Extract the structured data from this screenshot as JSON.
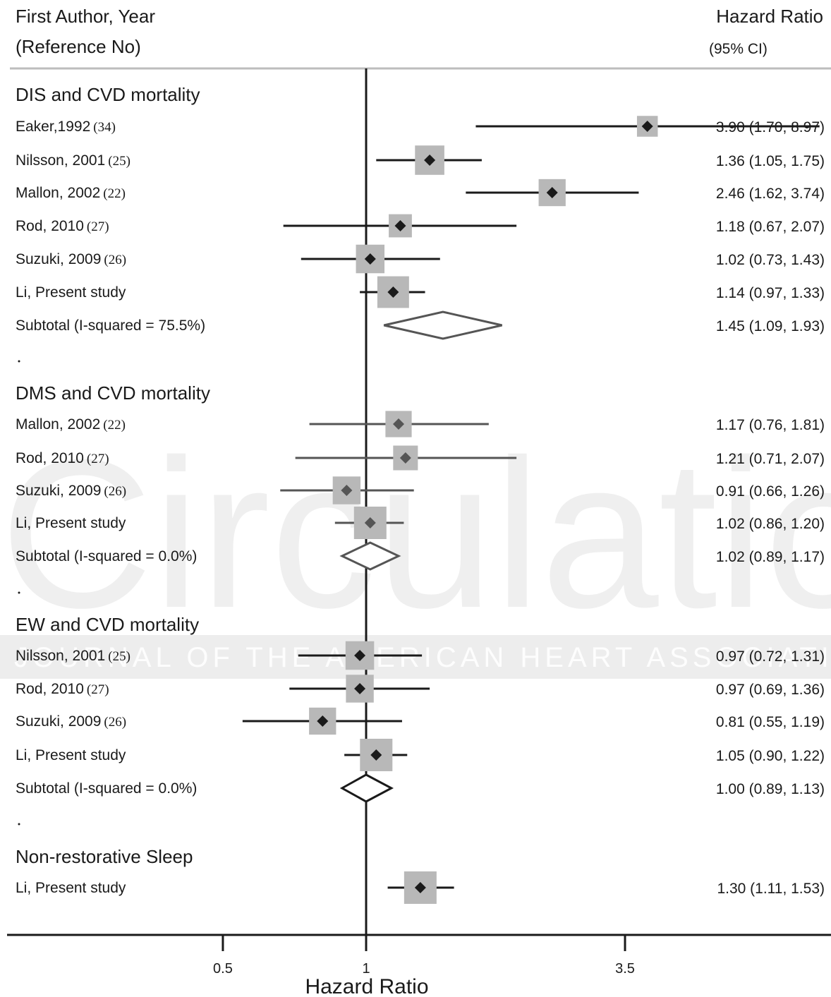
{
  "header": {
    "left_line1": "First Author, Year",
    "left_line2": "(Reference No)",
    "right_line1": "Hazard Ratio",
    "right_line2": "(95% CI)"
  },
  "watermark": {
    "word": "Circulation",
    "subtitle": "JOURNAL OF THE AMERICAN HEART ASSOCIATION"
  },
  "chart_data": {
    "type": "forest",
    "xlabel": "Hazard Ratio",
    "ylabel": "",
    "reference_line": 1,
    "x_ticks": [
      {
        "value": 0.5,
        "label": "0.5"
      },
      {
        "value": 1,
        "label": "1"
      },
      {
        "value": 3.5,
        "label": "3.5"
      }
    ],
    "groups": [
      {
        "title": "DIS and CVD mortality",
        "rows": [
          {
            "study": "Eaker,1992",
            "ref": "(34)",
            "hr": 3.9,
            "lo": 1.7,
            "hi": 8.97,
            "text": "3.90 (1.70, 8.97)",
            "weight": 0.25
          },
          {
            "study": "Nilsson, 2001",
            "ref": "(25)",
            "hr": 1.36,
            "lo": 1.05,
            "hi": 1.75,
            "text": "1.36 (1.05, 1.75)",
            "weight": 0.8
          },
          {
            "study": "Mallon, 2002",
            "ref": "(22)",
            "hr": 2.46,
            "lo": 1.62,
            "hi": 3.74,
            "text": "2.46 (1.62, 3.74)",
            "weight": 0.65
          },
          {
            "study": "Rod, 2010",
            "ref": "(27)",
            "hr": 1.18,
            "lo": 0.67,
            "hi": 2.07,
            "text": "1.18 (0.67, 2.07)",
            "weight": 0.4
          },
          {
            "study": "Suzuki, 2009",
            "ref": "(26)",
            "hr": 1.02,
            "lo": 0.73,
            "hi": 1.43,
            "text": "1.02 (0.73, 1.43)",
            "weight": 0.75
          },
          {
            "study": "Li, Present study",
            "ref": "",
            "hr": 1.14,
            "lo": 0.97,
            "hi": 1.33,
            "text": "1.14 (0.97, 1.33)",
            "weight": 0.95
          }
        ],
        "subtotal": {
          "label": "Subtotal  (I-squared = 75.5%)",
          "hr": 1.45,
          "lo": 1.09,
          "hi": 1.93,
          "text": "1.45 (1.09, 1.93)"
        }
      },
      {
        "title": "DMS and CVD mortality",
        "rows": [
          {
            "study": "Mallon, 2002",
            "ref": "(22)",
            "hr": 1.17,
            "lo": 0.76,
            "hi": 1.81,
            "text": "1.17 (0.76, 1.81)",
            "weight": 0.6
          },
          {
            "study": "Rod, 2010",
            "ref": "(27)",
            "hr": 1.21,
            "lo": 0.71,
            "hi": 2.07,
            "text": "1.21 (0.71, 2.07)",
            "weight": 0.5
          },
          {
            "study": "Suzuki, 2009",
            "ref": "(26)",
            "hr": 0.91,
            "lo": 0.66,
            "hi": 1.26,
            "text": "0.91 (0.66, 1.26)",
            "weight": 0.7
          },
          {
            "study": "Li, Present study",
            "ref": "",
            "hr": 1.02,
            "lo": 0.86,
            "hi": 1.2,
            "text": "1.02 (0.86, 1.20)",
            "weight": 1.0
          }
        ],
        "subtotal": {
          "label": "Subtotal  (I-squared = 0.0%)",
          "hr": 1.02,
          "lo": 0.89,
          "hi": 1.17,
          "text": "1.02 (0.89, 1.17)"
        }
      },
      {
        "title": "EW and CVD mortality",
        "rows": [
          {
            "study": "Nilsson, 2001",
            "ref": "(25)",
            "hr": 0.97,
            "lo": 0.72,
            "hi": 1.31,
            "text": "0.97 (0.72, 1.31)",
            "weight": 0.75
          },
          {
            "study": "Rod, 2010",
            "ref": "(27)",
            "hr": 0.97,
            "lo": 0.69,
            "hi": 1.36,
            "text": "0.97 (0.69, 1.36)",
            "weight": 0.7
          },
          {
            "study": "Suzuki, 2009",
            "ref": "(26)",
            "hr": 0.81,
            "lo": 0.55,
            "hi": 1.19,
            "text": "0.81 (0.55, 1.19)",
            "weight": 0.65
          },
          {
            "study": "Li, Present study",
            "ref": "",
            "hr": 1.05,
            "lo": 0.9,
            "hi": 1.22,
            "text": "1.05 (0.90, 1.22)",
            "weight": 1.0
          }
        ],
        "subtotal": {
          "label": "Subtotal  (I-squared = 0.0%)",
          "hr": 1.0,
          "lo": 0.89,
          "hi": 1.13,
          "text": "1.00 (0.89, 1.13)"
        }
      },
      {
        "title": "Non-restorative Sleep",
        "rows": [
          {
            "study": "Li, Present study",
            "ref": "",
            "hr": 1.3,
            "lo": 1.11,
            "hi": 1.53,
            "text": "1.30 (1.11, 1.53)",
            "weight": 1.0
          }
        ],
        "subtotal": null
      }
    ]
  }
}
